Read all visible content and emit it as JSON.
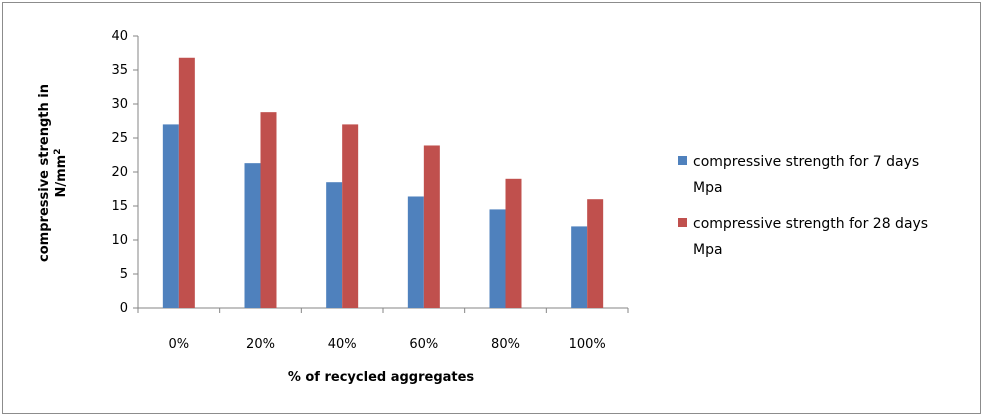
{
  "chart_data": {
    "type": "bar",
    "xlabel": "% of recycled aggregates",
    "ylabel_line1": "compressive strength in",
    "ylabel_line2": "N/mm",
    "ylabel_sup": "2",
    "categories": [
      "0%",
      "20%",
      "40%",
      "60%",
      "80%",
      "100%"
    ],
    "ylim": [
      0,
      40
    ],
    "yticks": [
      0,
      5,
      10,
      15,
      20,
      25,
      30,
      35,
      40
    ],
    "grid": false,
    "legend_position": "right",
    "series": [
      {
        "name_lines": [
          "compressive strength for 7 days",
          "Mpa"
        ],
        "color": "#4f81bd",
        "values": [
          27,
          21.3,
          18.5,
          16.4,
          14.5,
          12
        ]
      },
      {
        "name_lines": [
          "compressive strength for 28 days",
          "Mpa"
        ],
        "color": "#c0504d",
        "values": [
          36.8,
          28.8,
          27,
          23.9,
          19,
          16
        ]
      }
    ]
  }
}
